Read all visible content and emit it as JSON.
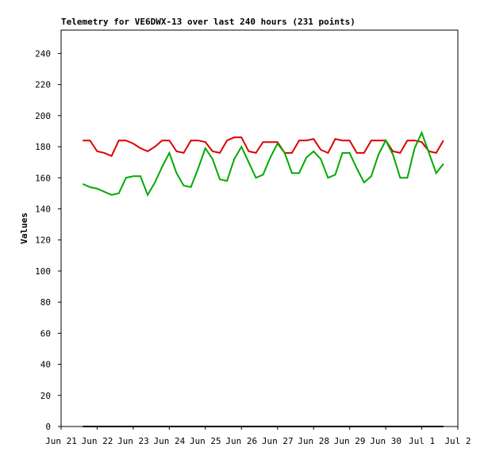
{
  "chart_data": {
    "type": "line",
    "title": "Telemetry for VE6DWX-13 over last 240 hours (231 points)",
    "y_label": "Values",
    "x": [
      0.6,
      0.8,
      1.0,
      1.2,
      1.4,
      1.6,
      1.8,
      2.0,
      2.2,
      2.4,
      2.6,
      2.8,
      3.0,
      3.2,
      3.4,
      3.6,
      3.8,
      4.0,
      4.2,
      4.4,
      4.6,
      4.8,
      5.0,
      5.2,
      5.4,
      5.6,
      5.8,
      6.0,
      6.2,
      6.4,
      6.6,
      6.8,
      7.0,
      7.2,
      7.4,
      7.6,
      7.8,
      8.0,
      8.2,
      8.4,
      8.6,
      8.8,
      9.0,
      9.2,
      9.4,
      9.6,
      9.8,
      10.0,
      10.2,
      10.4,
      10.6
    ],
    "series": [
      {
        "color": "#dd0000",
        "values": [
          184,
          184,
          177,
          176,
          174,
          184,
          184,
          182,
          179,
          177,
          180,
          184,
          184,
          177,
          176,
          184,
          184,
          183,
          177,
          176,
          184,
          186,
          186,
          177,
          176,
          183,
          183,
          183,
          176,
          176,
          184,
          184,
          185,
          178,
          176,
          185,
          184,
          184,
          176,
          176,
          184,
          184,
          184,
          177,
          176,
          184,
          184,
          183,
          177,
          176,
          184
        ]
      },
      {
        "color": "#00aa00",
        "values": [
          156,
          154,
          153,
          151,
          149,
          150,
          160,
          161,
          161,
          149,
          157,
          167,
          176,
          163,
          155,
          154,
          166,
          179,
          172,
          159,
          158,
          172,
          180,
          170,
          160,
          162,
          173,
          182,
          176,
          163,
          163,
          173,
          177,
          172,
          160,
          162,
          176,
          176,
          166,
          157,
          161,
          175,
          184,
          175,
          160,
          160,
          179,
          189,
          176,
          163,
          169
        ]
      },
      {
        "color": "#000000",
        "values": [
          0,
          0,
          0,
          0,
          0,
          0,
          0,
          0,
          0,
          0,
          0,
          0,
          0,
          0,
          0,
          0,
          0,
          0,
          0,
          0,
          0,
          0,
          0,
          0,
          0,
          0,
          0,
          0,
          0,
          0,
          0,
          0,
          0,
          0,
          0,
          0,
          0,
          0,
          0,
          0,
          0,
          0,
          0,
          0,
          0,
          0,
          0,
          0,
          0,
          0,
          0
        ]
      }
    ],
    "xlim": [
      0,
      11
    ],
    "xticks": [
      {
        "value": 0,
        "label": "Jun 21"
      },
      {
        "value": 1,
        "label": "Jun 22"
      },
      {
        "value": 2,
        "label": "Jun 23"
      },
      {
        "value": 3,
        "label": "Jun 24"
      },
      {
        "value": 4,
        "label": "Jun 25"
      },
      {
        "value": 5,
        "label": "Jun 26"
      },
      {
        "value": 6,
        "label": "Jun 27"
      },
      {
        "value": 7,
        "label": "Jun 28"
      },
      {
        "value": 8,
        "label": "Jun 29"
      },
      {
        "value": 9,
        "label": "Jun 30"
      },
      {
        "value": 10,
        "label": "Jul 1"
      },
      {
        "value": 11,
        "label": "Jul 2"
      }
    ],
    "ylim": [
      0,
      255
    ],
    "yticks": [
      0,
      20,
      40,
      60,
      80,
      100,
      120,
      140,
      160,
      180,
      200,
      220,
      240
    ],
    "grid": false
  }
}
